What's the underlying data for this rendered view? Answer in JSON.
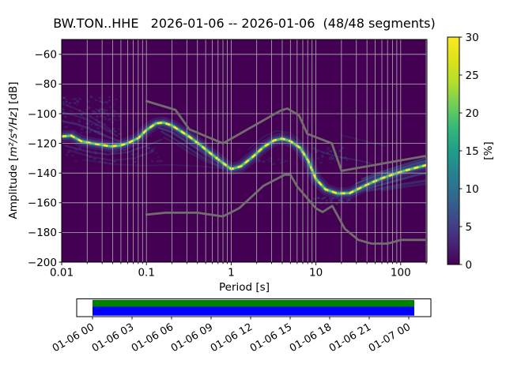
{
  "title": "BW.TON..HHE   2026-01-06 -- 2026-01-06  (48/48 segments)",
  "axes": {
    "xlabel": "Period [s]",
    "ylabel": {
      "prefix": "Amplitude [",
      "math": "m²/s⁴/Hz",
      "suffix": "] [dB]"
    },
    "x_tick_labels": [
      "0.01",
      "0.1",
      "1",
      "10",
      "100"
    ],
    "y_tick_labels": [
      "−60",
      "−80",
      "−100",
      "−120",
      "−140",
      "−160",
      "−180",
      "−200"
    ]
  },
  "colorbar": {
    "label": "[%]",
    "tick_labels": [
      "0",
      "5",
      "10",
      "15",
      "20",
      "25",
      "30"
    ]
  },
  "timeline": {
    "tick_labels": [
      "01-06 00",
      "01-06 03",
      "01-06 06",
      "01-06 09",
      "01-06 12",
      "01-06 15",
      "01-06 18",
      "01-06 21",
      "01-07 00"
    ],
    "coverage_color_top": "#008000",
    "coverage_color_bottom": "#0000ff"
  },
  "chart_data": {
    "type": "heatmap",
    "title": "BW.TON..HHE   2026-01-06 -- 2026-01-06  (48/48 segments)",
    "xlabel": "Period [s]",
    "ylabel": "Amplitude [m2/s4/Hz] [dB]",
    "x_scale": "log",
    "xlim": [
      0.01,
      204
    ],
    "ylim": [
      -200,
      -50
    ],
    "grid": true,
    "colormap": "viridis",
    "background_color": "#440154",
    "grid_color": "#b0b0b0",
    "noise_model_color": "#73736e",
    "x_ticks_s": [
      0.01,
      0.1,
      1,
      10,
      100
    ],
    "y_ticks_db": [
      -60,
      -80,
      -100,
      -120,
      -140,
      -160,
      -180,
      -200
    ],
    "colorbar": {
      "label": "[%]",
      "range": [
        0,
        30
      ],
      "ticks": [
        0,
        5,
        10,
        15,
        20,
        25,
        30
      ]
    },
    "segments_used": 48,
    "segments_total": 48,
    "psd_mode": {
      "periods_s": [
        0.01,
        0.013,
        0.017,
        0.022,
        0.028,
        0.038,
        0.05,
        0.062,
        0.08,
        0.1,
        0.13,
        0.16,
        0.2,
        0.25,
        0.32,
        0.42,
        0.55,
        0.75,
        1.0,
        1.3,
        1.8,
        2.4,
        3.2,
        4.0,
        5.0,
        6.5,
        8.0,
        10.0,
        13.0,
        18.0,
        25.0,
        32.0,
        45.0,
        60.0,
        80.0,
        110.0,
        150.0,
        204.0
      ],
      "db": [
        -115.3,
        -114.8,
        -118.5,
        -119.8,
        -120.8,
        -122.0,
        -121.3,
        -119.5,
        -116.5,
        -111.0,
        -106.5,
        -106.0,
        -108.0,
        -111.5,
        -115.5,
        -120.5,
        -126.0,
        -132.0,
        -137.3,
        -135.5,
        -129.0,
        -122.5,
        -118.0,
        -116.8,
        -118.5,
        -123.0,
        -131.0,
        -144.0,
        -151.0,
        -153.8,
        -153.5,
        -150.5,
        -146.5,
        -143.5,
        -141.0,
        -138.5,
        -136.5,
        -134.5
      ]
    },
    "noise_models": {
      "nhnm": {
        "periods_s": [
          0.1,
          0.22,
          0.32,
          0.8,
          3.8,
          4.6,
          6.3,
          7.9,
          15.4,
          20.0,
          204.0
        ],
        "db": [
          -91.5,
          -97.4,
          -110.5,
          -120.0,
          -98.0,
          -96.5,
          -101.0,
          -113.5,
          -120.0,
          -138.5,
          -128.3
        ]
      },
      "nlnm": {
        "periods_s": [
          0.1,
          0.17,
          0.4,
          0.8,
          1.24,
          2.4,
          4.3,
          5.0,
          6.0,
          10.0,
          12.0,
          15.6,
          21.9,
          31.6,
          45.0,
          70.0,
          101.0,
          204.0
        ],
        "db": [
          -168.0,
          -166.7,
          -166.7,
          -169.2,
          -163.7,
          -148.6,
          -141.1,
          -141.1,
          -149.0,
          -163.8,
          -166.2,
          -162.1,
          -177.5,
          -185.0,
          -187.5,
          -187.5,
          -185.0,
          -185.0
        ]
      }
    },
    "spread_traces": [
      {
        "name": "left-cloud-1",
        "color": "#3e4989",
        "opacity": 0.3,
        "width": 2.5,
        "periods": [
          0.01,
          0.013,
          0.018,
          0.026,
          0.038
        ],
        "db": [
          -93,
          -95.5,
          -99,
          -104.5,
          -111
        ]
      },
      {
        "name": "left-cloud-2",
        "color": "#3e4989",
        "opacity": 0.38,
        "width": 2.5,
        "periods": [
          0.01,
          0.014,
          0.02,
          0.03,
          0.045
        ],
        "db": [
          -99,
          -101,
          -104,
          -109,
          -115
        ]
      },
      {
        "name": "left-cloud-3",
        "color": "#445592",
        "opacity": 0.45,
        "width": 2.5,
        "periods": [
          0.01,
          0.015,
          0.022,
          0.033,
          0.05
        ],
        "db": [
          -105,
          -107,
          -110.5,
          -115,
          -119
        ]
      },
      {
        "name": "left-below-1",
        "color": "#3b528b",
        "opacity": 0.4,
        "width": 2.2,
        "periods": [
          0.011,
          0.02,
          0.035,
          0.06,
          0.1,
          0.15
        ],
        "db": [
          -121.5,
          -125.5,
          -127.5,
          -126,
          -121.5,
          -117.5
        ]
      },
      {
        "name": "left-below-2",
        "color": "#39568c",
        "opacity": 0.28,
        "width": 2.2,
        "periods": [
          0.012,
          0.022,
          0.04,
          0.07,
          0.12
        ],
        "db": [
          -124.5,
          -129,
          -131.5,
          -130,
          -125.5
        ]
      },
      {
        "name": "mid-horizontal-faint",
        "color": "#3b528b",
        "opacity": 0.22,
        "width": 2.0,
        "periods": [
          0.018,
          0.04,
          0.09,
          0.2,
          0.45,
          0.8
        ],
        "db": [
          -131,
          -134,
          -135,
          -134.5,
          -135.5,
          -136.8
        ]
      },
      {
        "name": "descent-fan-1",
        "color": "#2e6d8e",
        "opacity": 0.55,
        "width": 2.4,
        "periods": [
          0.14,
          0.2,
          0.3,
          0.45,
          0.7,
          1.05
        ],
        "db": [
          -109.5,
          -112.5,
          -119,
          -125.5,
          -132.5,
          -137.5
        ]
      },
      {
        "name": "descent-fan-2",
        "color": "#32628d",
        "opacity": 0.4,
        "width": 2.4,
        "periods": [
          0.15,
          0.2,
          0.3,
          0.45,
          0.7,
          1.0
        ],
        "db": [
          -112,
          -116,
          -122.5,
          -129,
          -135,
          -138
        ]
      },
      {
        "name": "descent-fan-3",
        "color": "#3b528b",
        "opacity": 0.28,
        "width": 2.4,
        "periods": [
          0.16,
          0.22,
          0.32,
          0.5,
          0.8
        ],
        "db": [
          -116,
          -120,
          -126,
          -132,
          -137
        ]
      },
      {
        "name": "rise-above-faint",
        "color": "#31688e",
        "opacity": 0.2,
        "width": 2.0,
        "periods": [
          1.6,
          2.4,
          3.5,
          5.0,
          6.5
        ],
        "db": [
          -124,
          -115.5,
          -111.5,
          -113,
          -118
        ]
      },
      {
        "name": "right-above-wisp-1",
        "color": "#31688e",
        "opacity": 0.3,
        "width": 2.0,
        "periods": [
          9,
          12,
          17,
          23,
          32,
          45
        ],
        "db": [
          -123,
          -126,
          -128.5,
          -130,
          -131.5,
          -133.5
        ]
      },
      {
        "name": "right-above-wisp-2",
        "color": "#31688e",
        "opacity": 0.18,
        "width": 2.0,
        "periods": [
          20,
          30,
          45,
          65
        ],
        "db": [
          -114.5,
          -117,
          -119.5,
          -121.5
        ]
      },
      {
        "name": "right-fan-above-1",
        "color": "#21918c",
        "opacity": 0.65,
        "width": 2.2,
        "periods": [
          30,
          50,
          90,
          150,
          204
        ],
        "db": [
          -147,
          -142,
          -137.5,
          -133.5,
          -131.5
        ]
      },
      {
        "name": "right-fan-above-2",
        "color": "#2a788e",
        "opacity": 0.45,
        "width": 2.2,
        "periods": [
          35,
          60,
          100,
          170,
          204
        ],
        "db": [
          -144,
          -139,
          -135,
          -131,
          -129.5
        ]
      },
      {
        "name": "right-fan-below-1",
        "color": "#31688e",
        "opacity": 0.55,
        "width": 2.6,
        "periods": [
          30,
          50,
          90,
          150,
          204
        ],
        "db": [
          -153,
          -149,
          -145,
          -141.5,
          -140
        ]
      },
      {
        "name": "right-fan-below-2",
        "color": "#355f8d",
        "opacity": 0.4,
        "width": 3.0,
        "periods": [
          40,
          70,
          120,
          204
        ],
        "db": [
          -152,
          -149.5,
          -147,
          -145
        ]
      },
      {
        "name": "right-fan-below-3",
        "color": "#3b528b",
        "opacity": 0.3,
        "width": 3.0,
        "periods": [
          60,
          100,
          160,
          204
        ],
        "db": [
          -151.5,
          -149.5,
          -148,
          -147
        ]
      }
    ],
    "speckle_regions": [
      {
        "p_min": 0.01,
        "p_max": 0.05,
        "db_min": -88,
        "db_max": -114,
        "count": 110,
        "color": "#3e4989",
        "opacity": 0.35,
        "seed": 7
      },
      {
        "p_min": 0.011,
        "p_max": 0.16,
        "db_min": -123,
        "db_max": -134,
        "count": 45,
        "color": "#3b528b",
        "opacity": 0.3,
        "seed": 13
      },
      {
        "p_min": 9,
        "p_max": 26,
        "db_min": -155,
        "db_max": -161,
        "count": 26,
        "color": "#355f8d",
        "opacity": 0.35,
        "seed": 21
      },
      {
        "p_min": 9,
        "p_max": 24,
        "db_min": -121,
        "db_max": -133,
        "count": 30,
        "color": "#31688e",
        "opacity": 0.25,
        "seed": 29
      },
      {
        "p_min": 1.2,
        "p_max": 4.5,
        "db_min": -134,
        "db_max": -130,
        "count": 18,
        "color": "#3b528b",
        "opacity": 0.25,
        "seed": 37
      }
    ],
    "timeline": {
      "tick_labels": [
        "01-06 00",
        "01-06 03",
        "01-06 06",
        "01-06 09",
        "01-06 12",
        "01-06 15",
        "01-06 18",
        "01-06 21",
        "01-07 00"
      ],
      "coverage_fraction": 1.0
    }
  }
}
